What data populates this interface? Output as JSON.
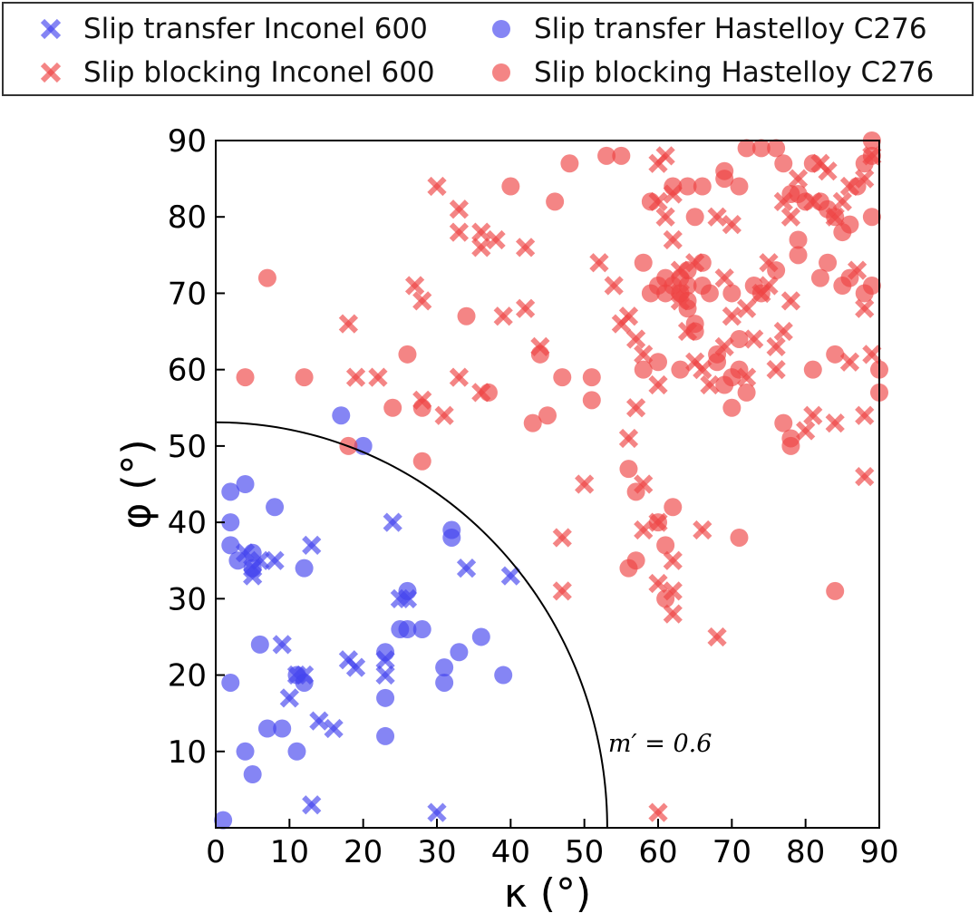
{
  "chart_data": {
    "type": "scatter",
    "xlabel": "κ (°)",
    "ylabel": "φ (°)",
    "xlim": [
      0,
      90
    ],
    "ylim": [
      0,
      90
    ],
    "xticks": [
      0,
      10,
      20,
      30,
      40,
      50,
      60,
      70,
      80,
      90
    ],
    "yticks": [
      10,
      20,
      30,
      40,
      50,
      60,
      70,
      80,
      90
    ],
    "grid": false,
    "legend_position": "top",
    "annotation": {
      "text": "m′ = 0.6",
      "x": 52,
      "y": 10
    },
    "curve": {
      "label": "m′ = 0.6",
      "type": "quarter-circle",
      "radius": 53.1
    },
    "series": [
      {
        "name": "Slip transfer Inconel 600",
        "marker": "x",
        "color": "#4444ee",
        "points": [
          [
            4,
            36
          ],
          [
            5,
            34
          ],
          [
            6,
            35
          ],
          [
            5,
            33
          ],
          [
            8,
            35
          ],
          [
            13,
            37
          ],
          [
            9,
            24
          ],
          [
            11,
            20
          ],
          [
            10,
            17
          ],
          [
            12,
            20
          ],
          [
            14,
            14
          ],
          [
            16,
            13
          ],
          [
            18,
            22
          ],
          [
            19,
            21
          ],
          [
            23,
            20
          ],
          [
            23,
            22
          ],
          [
            24,
            40
          ],
          [
            25,
            30
          ],
          [
            26,
            30
          ],
          [
            34,
            34
          ],
          [
            40,
            33
          ],
          [
            13,
            3
          ],
          [
            30,
            2
          ]
        ]
      },
      {
        "name": "Slip transfer Hastelloy C276",
        "marker": "o",
        "color": "#4444ee",
        "points": [
          [
            17,
            54
          ],
          [
            20,
            50
          ],
          [
            2,
            40
          ],
          [
            2,
            44
          ],
          [
            4,
            45
          ],
          [
            8,
            42
          ],
          [
            2,
            37
          ],
          [
            3,
            35
          ],
          [
            5,
            34
          ],
          [
            12,
            34
          ],
          [
            6,
            24
          ],
          [
            5,
            36
          ],
          [
            2,
            19
          ],
          [
            4,
            10
          ],
          [
            5,
            7
          ],
          [
            7,
            13
          ],
          [
            9,
            13
          ],
          [
            11,
            10
          ],
          [
            12,
            19
          ],
          [
            11,
            20
          ],
          [
            23,
            12
          ],
          [
            23,
            17
          ],
          [
            23,
            23
          ],
          [
            25,
            26
          ],
          [
            26,
            26
          ],
          [
            26,
            31
          ],
          [
            28,
            26
          ],
          [
            32,
            39
          ],
          [
            32,
            38
          ],
          [
            31,
            19
          ],
          [
            31,
            21
          ],
          [
            33,
            23
          ],
          [
            36,
            25
          ],
          [
            39,
            20
          ],
          [
            1,
            1
          ]
        ]
      },
      {
        "name": "Slip blocking Inconel 600",
        "marker": "x",
        "color": "#ee4444",
        "points": [
          [
            30,
            84
          ],
          [
            33,
            81
          ],
          [
            33,
            78
          ],
          [
            36,
            78
          ],
          [
            36,
            76
          ],
          [
            38,
            77
          ],
          [
            42,
            76
          ],
          [
            42,
            68
          ],
          [
            39,
            67
          ],
          [
            44,
            63
          ],
          [
            18,
            66
          ],
          [
            19,
            59
          ],
          [
            22,
            59
          ],
          [
            27,
            71
          ],
          [
            28,
            69
          ],
          [
            28,
            56
          ],
          [
            31,
            54
          ],
          [
            33,
            59
          ],
          [
            36,
            57
          ],
          [
            47,
            38
          ],
          [
            47,
            31
          ],
          [
            50,
            45
          ],
          [
            52,
            74
          ],
          [
            54,
            71
          ],
          [
            56,
            67
          ],
          [
            55,
            66
          ],
          [
            57,
            64
          ],
          [
            58,
            62
          ],
          [
            57,
            55
          ],
          [
            56,
            51
          ],
          [
            58,
            45
          ],
          [
            58,
            39
          ],
          [
            60,
            40
          ],
          [
            60,
            32
          ],
          [
            60,
            87
          ],
          [
            61,
            88
          ],
          [
            60,
            82
          ],
          [
            61,
            80
          ],
          [
            62,
            83
          ],
          [
            62,
            77
          ],
          [
            63,
            70
          ],
          [
            63,
            69
          ],
          [
            64,
            65
          ],
          [
            65,
            74
          ],
          [
            65,
            61
          ],
          [
            66,
            60
          ],
          [
            67,
            58
          ],
          [
            66,
            39
          ],
          [
            62,
            35
          ],
          [
            62,
            31
          ],
          [
            62,
            28
          ],
          [
            68,
            25
          ],
          [
            69,
            72
          ],
          [
            69,
            63
          ],
          [
            70,
            79
          ],
          [
            70,
            67
          ],
          [
            72,
            68
          ],
          [
            73,
            64
          ],
          [
            75,
            74
          ],
          [
            75,
            71
          ],
          [
            76,
            63
          ],
          [
            76,
            60
          ],
          [
            77,
            65
          ],
          [
            78,
            69
          ],
          [
            78,
            80
          ],
          [
            79,
            85
          ],
          [
            81,
            82
          ],
          [
            82,
            87
          ],
          [
            83,
            86
          ],
          [
            84,
            80
          ],
          [
            85,
            82
          ],
          [
            86,
            84
          ],
          [
            88,
            85
          ],
          [
            89,
            88
          ],
          [
            87,
            73
          ],
          [
            88,
            68
          ],
          [
            89,
            62
          ],
          [
            88,
            54
          ],
          [
            86,
            61
          ],
          [
            84,
            53
          ],
          [
            88,
            46
          ],
          [
            81,
            54
          ],
          [
            80,
            52
          ],
          [
            68,
            80
          ],
          [
            60,
            2
          ],
          [
            60,
            58
          ],
          [
            63,
            73
          ],
          [
            72,
            59
          ],
          [
            74,
            70
          ],
          [
            77,
            82
          ]
        ]
      },
      {
        "name": "Slip blocking Hastelloy C276",
        "marker": "o",
        "color": "#ee4444",
        "points": [
          [
            40,
            84
          ],
          [
            46,
            82
          ],
          [
            48,
            87
          ],
          [
            53,
            88
          ],
          [
            55,
            88
          ],
          [
            59,
            82
          ],
          [
            62,
            84
          ],
          [
            64,
            84
          ],
          [
            65,
            80
          ],
          [
            66,
            84
          ],
          [
            69,
            85
          ],
          [
            69,
            86
          ],
          [
            71,
            84
          ],
          [
            72,
            89
          ],
          [
            74,
            89
          ],
          [
            76,
            89
          ],
          [
            77,
            87
          ],
          [
            78,
            83
          ],
          [
            79,
            83
          ],
          [
            80,
            82
          ],
          [
            81,
            87
          ],
          [
            82,
            82
          ],
          [
            83,
            81
          ],
          [
            84,
            80
          ],
          [
            85,
            78
          ],
          [
            86,
            79
          ],
          [
            88,
            87
          ],
          [
            89,
            88
          ],
          [
            87,
            84
          ],
          [
            89,
            90
          ],
          [
            7,
            72
          ],
          [
            4,
            59
          ],
          [
            12,
            59
          ],
          [
            18,
            50
          ],
          [
            24,
            55
          ],
          [
            26,
            62
          ],
          [
            28,
            55
          ],
          [
            28,
            48
          ],
          [
            34,
            67
          ],
          [
            37,
            57
          ],
          [
            43,
            53
          ],
          [
            44,
            62
          ],
          [
            45,
            54
          ],
          [
            47,
            59
          ],
          [
            51,
            59
          ],
          [
            51,
            56
          ],
          [
            56,
            34
          ],
          [
            56,
            47
          ],
          [
            57,
            35
          ],
          [
            57,
            44
          ],
          [
            58,
            60
          ],
          [
            58,
            74
          ],
          [
            59,
            70
          ],
          [
            60,
            71
          ],
          [
            61,
            70
          ],
          [
            62,
            71
          ],
          [
            63,
            72
          ],
          [
            63,
            70
          ],
          [
            64,
            73
          ],
          [
            64,
            68
          ],
          [
            65,
            66
          ],
          [
            65,
            65
          ],
          [
            66,
            71
          ],
          [
            67,
            70
          ],
          [
            66,
            74
          ],
          [
            68,
            62
          ],
          [
            68,
            61
          ],
          [
            69,
            58
          ],
          [
            70,
            59
          ],
          [
            70,
            55
          ],
          [
            71,
            64
          ],
          [
            71,
            60
          ],
          [
            72,
            57
          ],
          [
            73,
            71
          ],
          [
            74,
            70
          ],
          [
            76,
            73
          ],
          [
            77,
            53
          ],
          [
            78,
            51
          ],
          [
            78,
            50
          ],
          [
            79,
            75
          ],
          [
            79,
            77
          ],
          [
            81,
            60
          ],
          [
            82,
            72
          ],
          [
            83,
            74
          ],
          [
            84,
            62
          ],
          [
            85,
            71
          ],
          [
            86,
            72
          ],
          [
            88,
            70
          ],
          [
            89,
            71
          ],
          [
            89,
            80
          ],
          [
            90,
            60
          ],
          [
            90,
            57
          ],
          [
            60,
            40
          ],
          [
            61,
            37
          ],
          [
            61,
            30
          ],
          [
            62,
            42
          ],
          [
            71,
            38
          ],
          [
            84,
            31
          ],
          [
            60,
            61
          ],
          [
            61,
            72
          ],
          [
            63,
            60
          ],
          [
            64,
            69
          ],
          [
            70,
            70
          ],
          [
            64,
            71
          ]
        ]
      }
    ]
  }
}
